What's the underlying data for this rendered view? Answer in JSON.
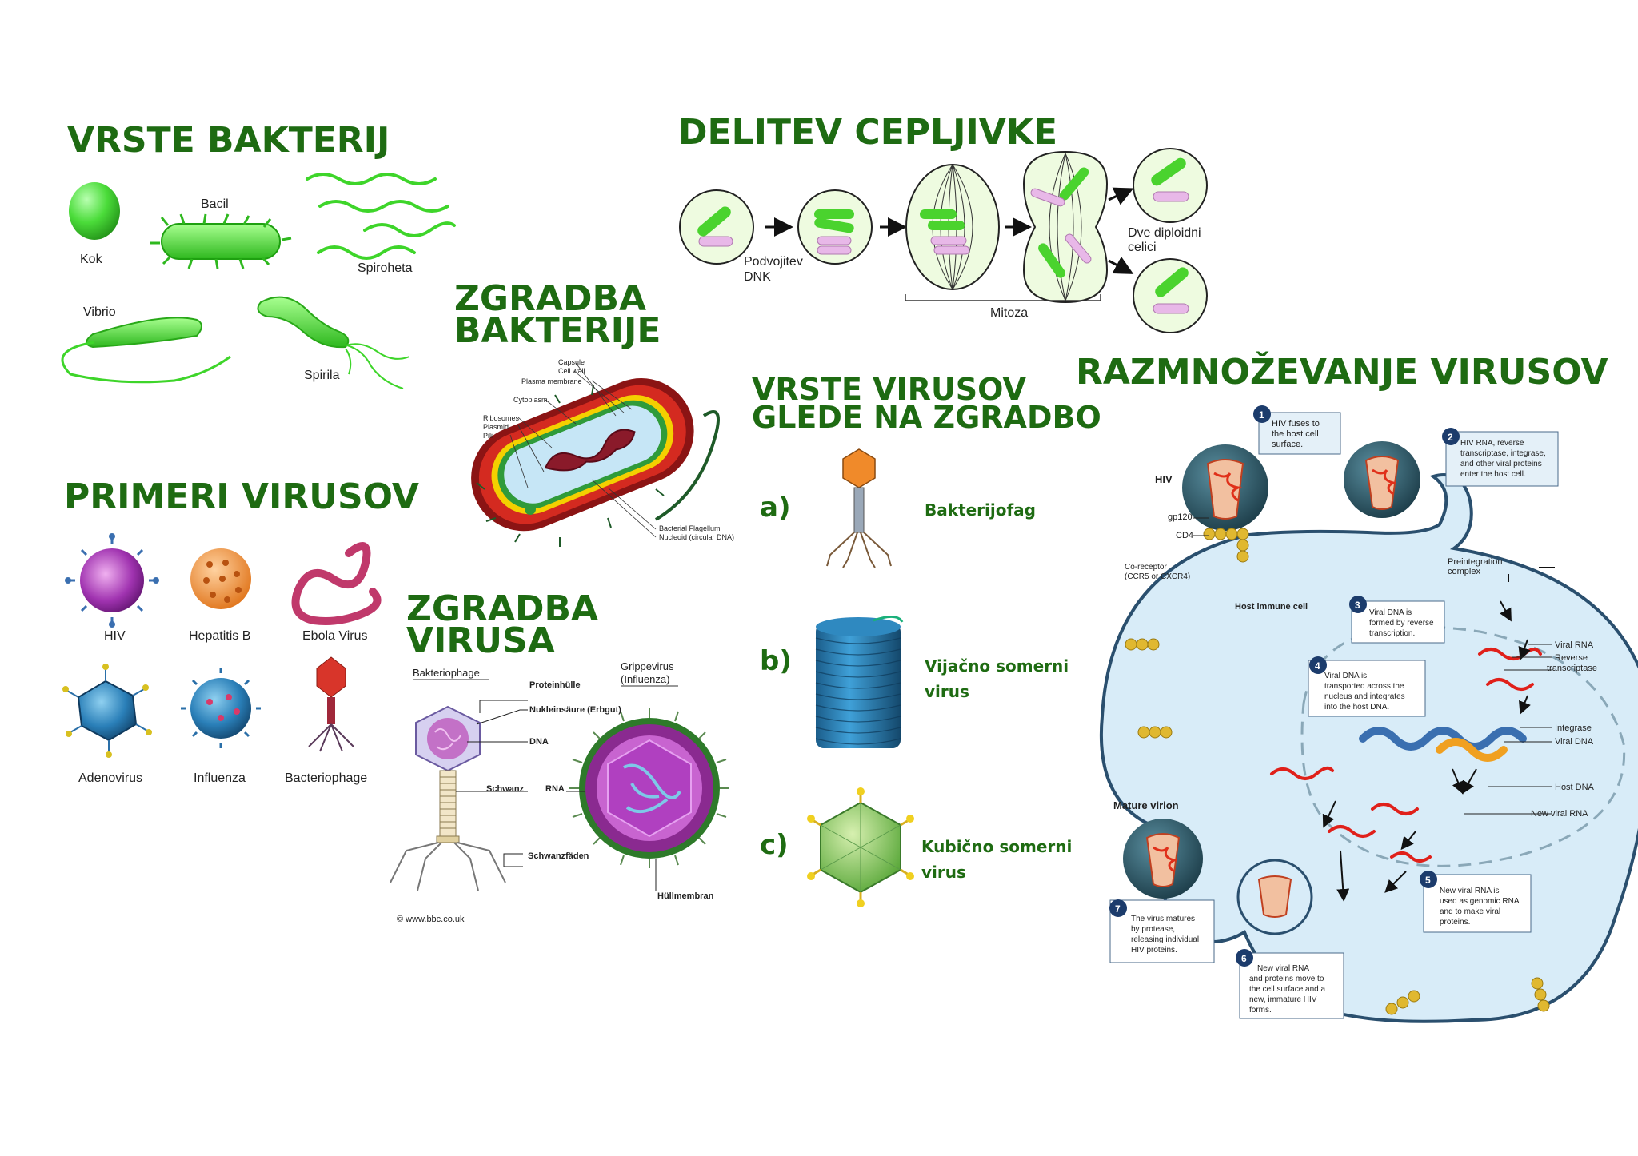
{
  "headings": {
    "vrste_bakterij": "VRSTE BAKTERIJ",
    "delitev": "DELITEV CEPLJIVKE",
    "zgradba_bakterije_1": "ZGRADBA",
    "zgradba_bakterije_2": "BAKTERIJE",
    "primeri_virusov": "PRIMERI VIRUSOV",
    "zgradba_virusa_1": "ZGRADBA",
    "zgradba_virusa_2": "VIRUSA",
    "vrste_virusov_1": "VRSTE VIRUSOV",
    "vrste_virusov_2": "GLEDE NA ZGRADBO",
    "razmnozevanje": "RAZMNOŽEVANJE VIRUSOV"
  },
  "bacteria_types": {
    "kok": "Kok",
    "bacil": "Bacil",
    "spiroheta": "Spiroheta",
    "vibrio": "Vibrio",
    "spirila": "Spirila"
  },
  "division": {
    "podvojitev_1": "Podvojitev",
    "podvojitev_2": "DNK",
    "mitoza": "Mitoza",
    "dve_1": "Dve diploidni",
    "dve_2": "celici"
  },
  "bacterium_parts": {
    "capsule": "Capsule",
    "cell_wall": "Cell wall",
    "plasma_membrane": "Plasma membrane",
    "cytoplasm": "Cytoplasm",
    "ribosomes": "Ribosomes",
    "plasmid": "Plasmid",
    "pili": "Pili",
    "flagellum": "Bacterial Flagellum",
    "nucleoid": "Nucleoid (circular DNA)"
  },
  "virus_examples": {
    "hiv": "HIV",
    "hepatitis": "Hepatitis B",
    "ebola": "Ebola Virus",
    "adeno": "Adenovirus",
    "influenza": "Influenza",
    "phage": "Bacteriophage"
  },
  "virus_structure": {
    "bakteriophage": "Bakteriophage",
    "grippe_1": "Grippevirus",
    "grippe_2": "(Influenza)",
    "proteinhuelle": "Proteinhülle",
    "nukleinsaeure": "Nukleinsäure (Erbgut)",
    "dna": "DNA",
    "schwanz": "Schwanz",
    "rna": "RNA",
    "schwanzfaeden": "Schwanzfäden",
    "huellmembran": "Hüllmembran",
    "copyright": "© www.bbc.co.uk"
  },
  "virus_types": {
    "a_letter": "a)",
    "a_name": "Bakterijofag",
    "b_letter": "b)",
    "b_name_1": "Vijačno somerni",
    "b_name_2": "virus",
    "c_letter": "c)",
    "c_name_1": "Kubično somerni",
    "c_name_2": "virus"
  },
  "hiv_cycle": {
    "hiv": "HIV",
    "gp120": "gp120",
    "cd4": "CD4",
    "coreceptor_1": "Co-receptor",
    "coreceptor_2": "(CCR5 or CXCR4)",
    "host_cell": "Host immune cell",
    "mature": "Mature virion",
    "preint_1": "Preintegration",
    "preint_2": "complex",
    "viral_rna": "Viral RNA",
    "rt_1": "Reverse",
    "rt_2": "transcriptase",
    "integrase": "Integrase",
    "viral_dna": "Viral DNA",
    "host_dna": "Host DNA",
    "new_viral_rna": "New viral RNA",
    "steps": [
      {
        "num": "1",
        "lines": [
          "HIV fuses to",
          "the host cell",
          "surface."
        ]
      },
      {
        "num": "2",
        "lines": [
          "HIV RNA, reverse",
          "transcriptase, integrase,",
          "and other viral proteins",
          "enter the host cell."
        ]
      },
      {
        "num": "3",
        "lines": [
          "Viral DNA is",
          "formed by reverse",
          "transcription."
        ]
      },
      {
        "num": "4",
        "lines": [
          "Viral DNA is",
          "transported across the",
          "nucleus and integrates",
          "into the host DNA."
        ]
      },
      {
        "num": "5",
        "lines": [
          "New viral RNA is",
          "used as genomic RNA",
          "and to make viral",
          "proteins."
        ]
      },
      {
        "num": "6",
        "lines": [
          "New viral RNA",
          "and proteins move to",
          "the cell surface and a",
          "new, immature HIV",
          "forms."
        ]
      },
      {
        "num": "7",
        "lines": [
          "The virus matures",
          "by protease,",
          "releasing individual",
          "HIV proteins."
        ]
      }
    ]
  }
}
